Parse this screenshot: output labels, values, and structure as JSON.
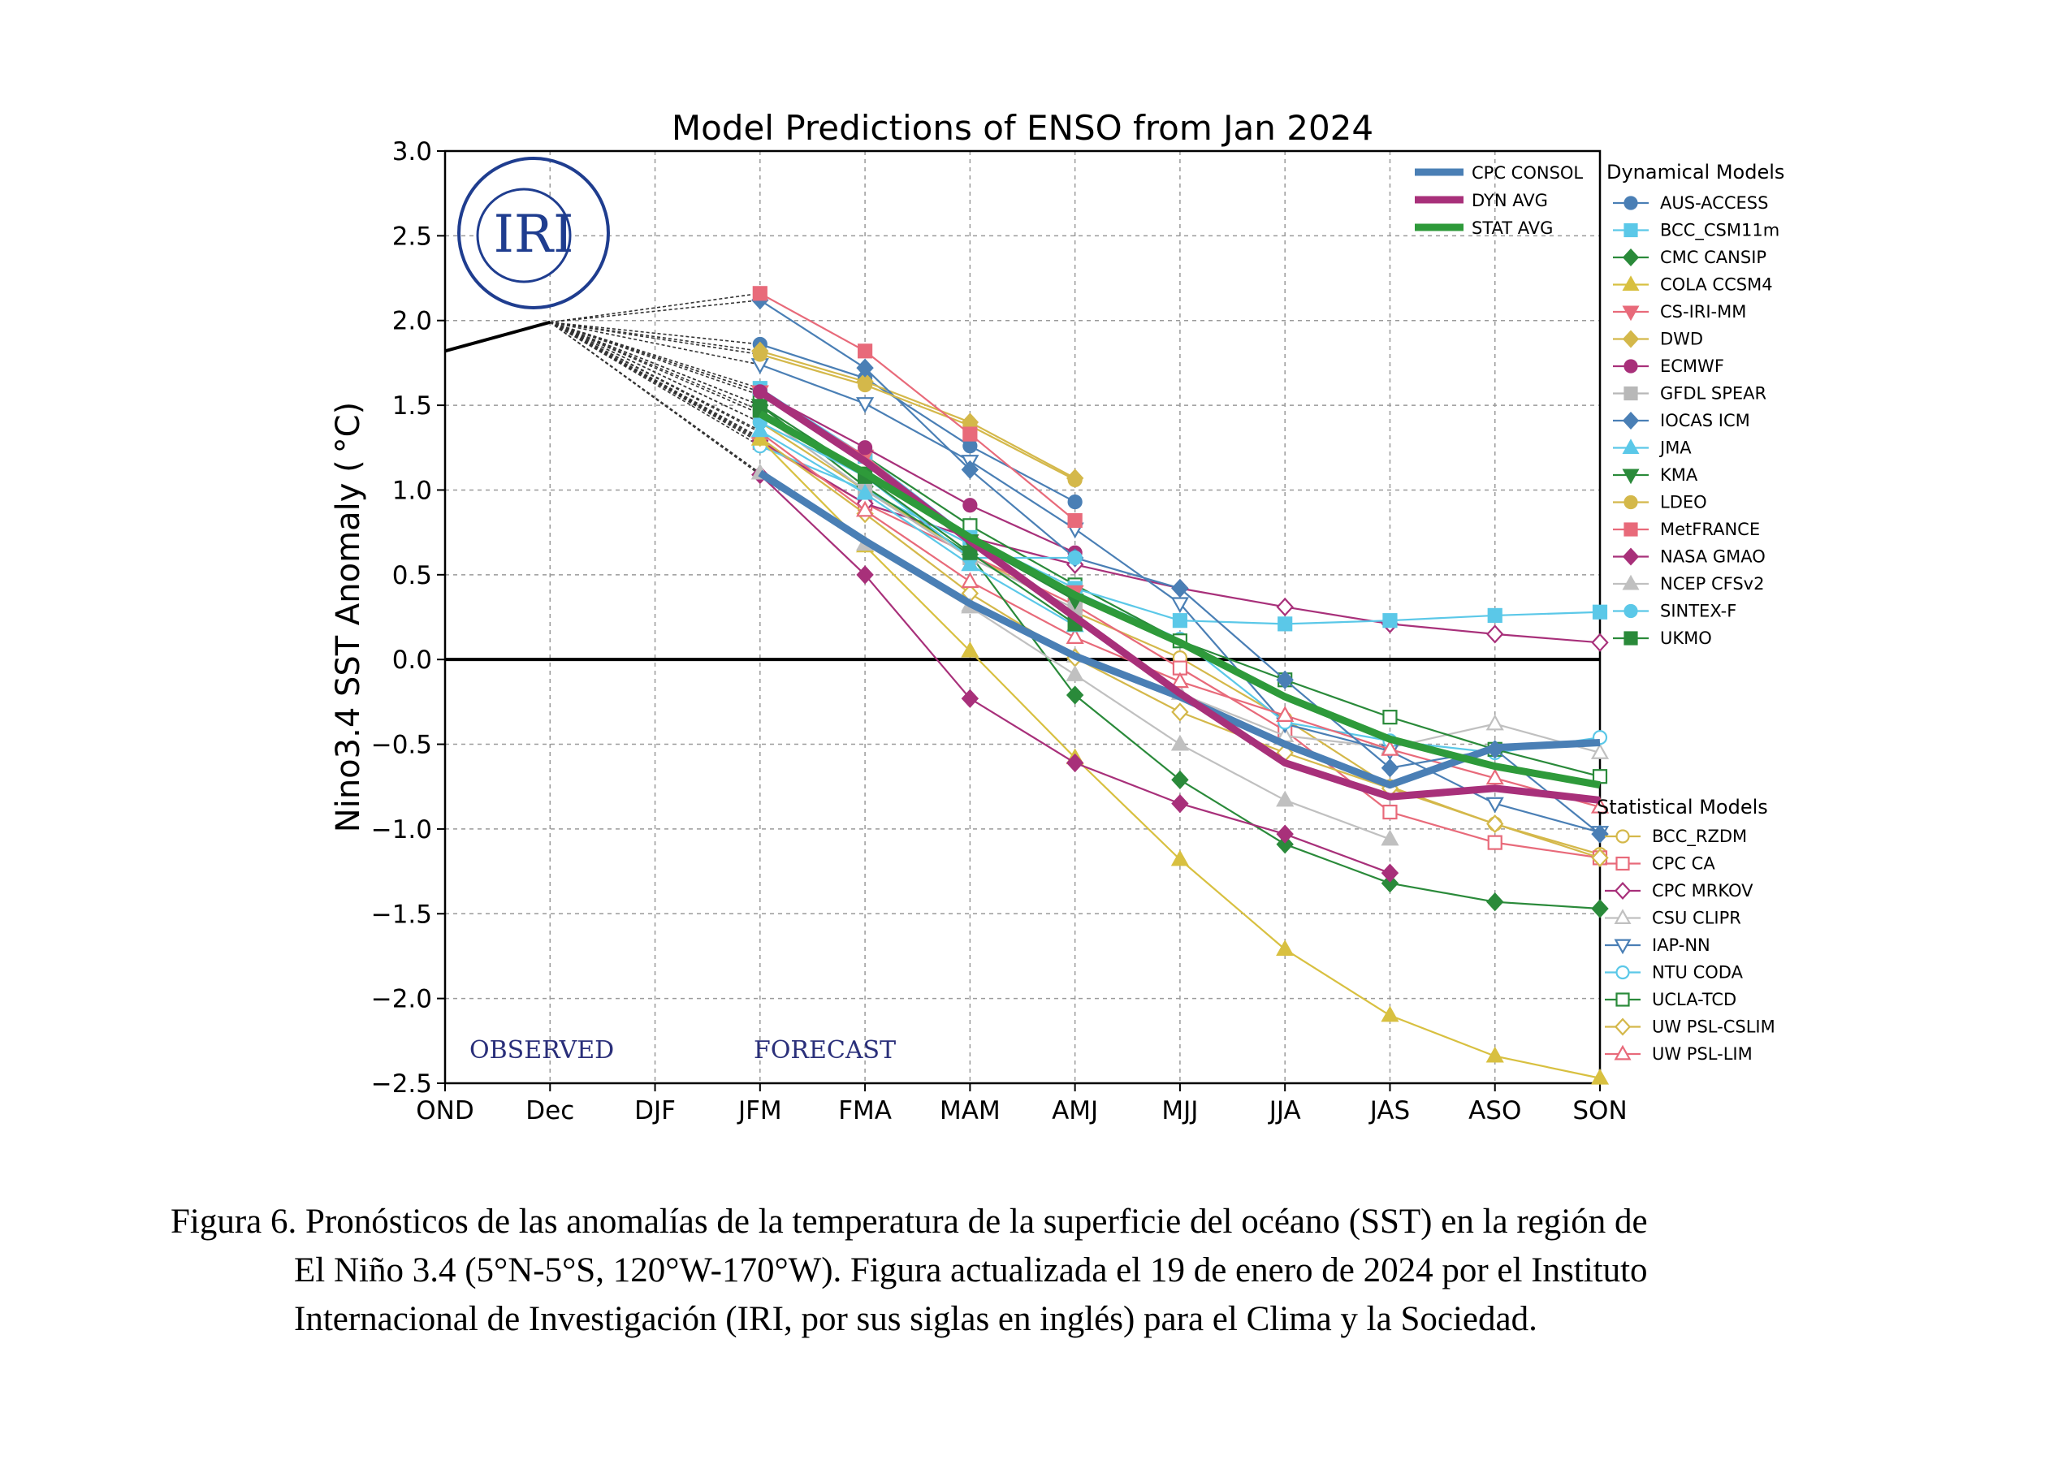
{
  "caption": {
    "line1": "Figura 6. Pronósticos de las anomalías de la temperatura de la superficie del océano (SST) en la región de",
    "line2": "El Niño 3.4 (5°N-5°S, 120°W-170°W). Figura actualizada el 19 de enero de 2024 por el Instituto",
    "line3": "Internacional de Investigación (IRI, por sus siglas en inglés) para el Clima y la Sociedad."
  },
  "logo": {
    "text": "IRI",
    "color": "#1f3d8f"
  },
  "chart_data": {
    "type": "line",
    "title": "Model Predictions of ENSO from Jan 2024",
    "ylabel": "Nino3.4 SST Anomaly ( °C)",
    "xlabel": "",
    "categories": [
      "OND",
      "Dec",
      "DJF",
      "JFM",
      "FMA",
      "MAM",
      "AMJ",
      "MJJ",
      "JJA",
      "JAS",
      "ASO",
      "SON"
    ],
    "ylim": [
      -2.5,
      3.0
    ],
    "yticks": [
      3.0,
      2.5,
      2.0,
      1.5,
      1.0,
      0.5,
      0.0,
      -0.5,
      -1.0,
      -1.5,
      -2.0,
      -2.5
    ],
    "ytick_labels": [
      "3.0",
      "2.5",
      "2.0",
      "1.5",
      "1.0",
      "0.5",
      "0.0",
      "−0.5",
      "−1.0",
      "−1.5",
      "−2.0",
      "−2.5"
    ],
    "grid": true,
    "zero_line": true,
    "annotations": {
      "observed": "OBSERVED",
      "forecast": "FORECAST"
    },
    "observed": {
      "x": [
        "OND",
        "Dec"
      ],
      "values": [
        1.82,
        1.99
      ]
    },
    "legend_summary_title": "",
    "summary_series": [
      {
        "name": "CPC CONSOL",
        "color": "#4a7fb5",
        "width": 9,
        "values": [
          null,
          null,
          null,
          1.1,
          0.7,
          0.33,
          0.02,
          -0.22,
          -0.5,
          -0.74,
          -0.52,
          -0.49
        ]
      },
      {
        "name": "DYN AVG",
        "color": "#a8307a",
        "width": 9,
        "values": [
          null,
          null,
          null,
          1.58,
          1.17,
          0.7,
          0.25,
          -0.2,
          -0.61,
          -0.81,
          -0.76,
          -0.83
        ]
      },
      {
        "name": "STAT AVG",
        "color": "#2e9a3a",
        "width": 9,
        "values": [
          null,
          null,
          null,
          1.45,
          1.1,
          0.72,
          0.38,
          0.1,
          -0.22,
          -0.47,
          -0.63,
          -0.74
        ]
      }
    ],
    "dynamical_title": "Dynamical Models",
    "dynamical_models": [
      {
        "name": "AUS-ACCESS",
        "color": "#4a7fb5",
        "marker": "circle",
        "filled": true,
        "values": [
          null,
          null,
          null,
          1.86,
          1.66,
          1.26,
          0.93,
          null,
          null,
          null,
          null,
          null
        ]
      },
      {
        "name": "BCC_CSM11m",
        "color": "#5bc8e8",
        "marker": "square",
        "filled": true,
        "values": [
          null,
          null,
          null,
          1.6,
          1.2,
          0.72,
          0.42,
          0.23,
          0.21,
          0.23,
          0.26,
          0.28
        ]
      },
      {
        "name": "CMC CANSIP",
        "color": "#2a8a3a",
        "marker": "diamond",
        "filled": true,
        "values": [
          null,
          null,
          null,
          1.5,
          1.02,
          0.62,
          -0.21,
          -0.71,
          -1.09,
          -1.32,
          -1.43,
          -1.47
        ]
      },
      {
        "name": "COLA CCSM4",
        "color": "#d8c040",
        "marker": "triangle",
        "filled": true,
        "values": [
          null,
          null,
          null,
          1.3,
          0.67,
          0.05,
          -0.58,
          -1.18,
          -1.71,
          -2.1,
          -2.34,
          -2.47
        ]
      },
      {
        "name": "CS-IRI-MM",
        "color": "#e86a7a",
        "marker": "triangle-down",
        "filled": true,
        "values": [
          null,
          null,
          null,
          1.58,
          1.2,
          0.7,
          0.4,
          null,
          null,
          null,
          null,
          null
        ]
      },
      {
        "name": "DWD",
        "color": "#d4b84a",
        "marker": "diamond",
        "filled": true,
        "values": [
          null,
          null,
          null,
          1.82,
          1.64,
          1.4,
          1.07,
          null,
          null,
          null,
          null,
          null
        ]
      },
      {
        "name": "ECMWF",
        "color": "#a8307a",
        "marker": "circle",
        "filled": true,
        "values": [
          null,
          null,
          null,
          1.58,
          1.25,
          0.91,
          0.63,
          null,
          null,
          null,
          null,
          null
        ]
      },
      {
        "name": "GFDL SPEAR",
        "color": "#b8b8b8",
        "marker": "square",
        "filled": true,
        "values": [
          null,
          null,
          null,
          1.45,
          1.0,
          0.6,
          0.3,
          null,
          null,
          null,
          null,
          null
        ]
      },
      {
        "name": "IOCAS ICM",
        "color": "#4a7fb5",
        "marker": "diamond",
        "filled": true,
        "values": [
          null,
          null,
          null,
          2.12,
          1.72,
          1.12,
          0.6,
          0.42,
          -0.12,
          -0.64,
          -0.53,
          -1.03
        ]
      },
      {
        "name": "JMA",
        "color": "#5bc8e8",
        "marker": "triangle",
        "filled": true,
        "values": [
          null,
          null,
          null,
          1.35,
          0.98,
          0.56,
          0.2,
          null,
          null,
          null,
          null,
          null
        ]
      },
      {
        "name": "KMA",
        "color": "#2a8a3a",
        "marker": "triangle-down",
        "filled": true,
        "values": [
          null,
          null,
          null,
          1.5,
          1.1,
          0.7,
          0.35,
          null,
          null,
          null,
          null,
          null
        ]
      },
      {
        "name": "LDEO",
        "color": "#d4b84a",
        "marker": "circle",
        "filled": true,
        "values": [
          null,
          null,
          null,
          1.8,
          1.62,
          1.38,
          1.06,
          null,
          null,
          null,
          null,
          null
        ]
      },
      {
        "name": "MetFRANCE",
        "color": "#e86a7a",
        "marker": "square",
        "filled": true,
        "values": [
          null,
          null,
          null,
          2.16,
          1.82,
          1.33,
          0.82,
          null,
          null,
          null,
          null,
          null
        ]
      },
      {
        "name": "NASA GMAO",
        "color": "#a8307a",
        "marker": "diamond",
        "filled": true,
        "values": [
          null,
          null,
          null,
          1.09,
          0.5,
          -0.23,
          -0.61,
          -0.85,
          -1.03,
          -1.26,
          null,
          null
        ]
      },
      {
        "name": "NCEP CFSv2",
        "color": "#c0c0c0",
        "marker": "triangle",
        "filled": true,
        "values": [
          null,
          null,
          null,
          1.1,
          0.68,
          0.31,
          -0.09,
          -0.5,
          -0.83,
          -1.06,
          null,
          null
        ]
      },
      {
        "name": "SINTEX-F",
        "color": "#5bc8e8",
        "marker": "circle",
        "filled": true,
        "values": [
          null,
          null,
          null,
          1.4,
          1.08,
          0.6,
          0.6,
          null,
          null,
          null,
          null,
          null
        ]
      },
      {
        "name": "UKMO",
        "color": "#2a8a3a",
        "marker": "square",
        "filled": true,
        "values": [
          null,
          null,
          null,
          1.47,
          1.08,
          0.63,
          0.21,
          null,
          null,
          null,
          null,
          null
        ]
      }
    ],
    "statistical_title": "Statistical Models",
    "statistical_models": [
      {
        "name": "BCC_RZDM",
        "color": "#d4b84a",
        "marker": "circle",
        "filled": false,
        "values": [
          null,
          null,
          null,
          1.4,
          1.0,
          0.62,
          0.28,
          0.01,
          -0.35,
          -0.75,
          -0.97,
          -1.15
        ]
      },
      {
        "name": "CPC CA",
        "color": "#e86a7a",
        "marker": "square",
        "filled": false,
        "values": [
          null,
          null,
          null,
          1.28,
          0.92,
          0.62,
          0.32,
          -0.05,
          -0.42,
          -0.9,
          -1.08,
          -1.17
        ]
      },
      {
        "name": "CPC MRKOV",
        "color": "#a8307a",
        "marker": "diamond",
        "filled": false,
        "values": [
          null,
          null,
          null,
          1.29,
          0.92,
          0.72,
          0.56,
          0.42,
          0.31,
          0.21,
          0.15,
          0.1
        ]
      },
      {
        "name": "CSU CLIPR",
        "color": "#c0c0c0",
        "marker": "triangle",
        "filled": false,
        "values": [
          null,
          null,
          null,
          1.1,
          0.68,
          0.32,
          0.02,
          -0.2,
          -0.45,
          -0.52,
          -0.38,
          -0.55
        ]
      },
      {
        "name": "IAP-NN",
        "color": "#4a7fb5",
        "marker": "triangle-down",
        "filled": false,
        "values": [
          null,
          null,
          null,
          1.74,
          1.51,
          1.17,
          0.77,
          0.33,
          -0.38,
          -0.54,
          -0.85,
          -1.02
        ]
      },
      {
        "name": "NTU CODA",
        "color": "#5bc8e8",
        "marker": "circle",
        "filled": false,
        "values": [
          null,
          null,
          null,
          1.26,
          1.0,
          0.68,
          0.4,
          0.12,
          -0.37,
          -0.48,
          -0.55,
          -0.46
        ]
      },
      {
        "name": "UCLA-TCD",
        "color": "#2a8a3a",
        "marker": "square",
        "filled": false,
        "values": [
          null,
          null,
          null,
          1.56,
          1.2,
          0.79,
          0.44,
          0.11,
          -0.12,
          -0.34,
          -0.53,
          -0.69
        ]
      },
      {
        "name": "UW PSL-CSLIM",
        "color": "#d4b84a",
        "marker": "diamond",
        "filled": false,
        "values": [
          null,
          null,
          null,
          1.31,
          0.86,
          0.39,
          0.01,
          -0.31,
          -0.55,
          -0.76,
          -0.97,
          -1.17
        ]
      },
      {
        "name": "UW PSL-LIM",
        "color": "#e86a7a",
        "marker": "triangle",
        "filled": false,
        "values": [
          null,
          null,
          null,
          1.34,
          0.88,
          0.46,
          0.13,
          -0.13,
          -0.33,
          -0.53,
          -0.7,
          -0.87
        ]
      }
    ]
  }
}
